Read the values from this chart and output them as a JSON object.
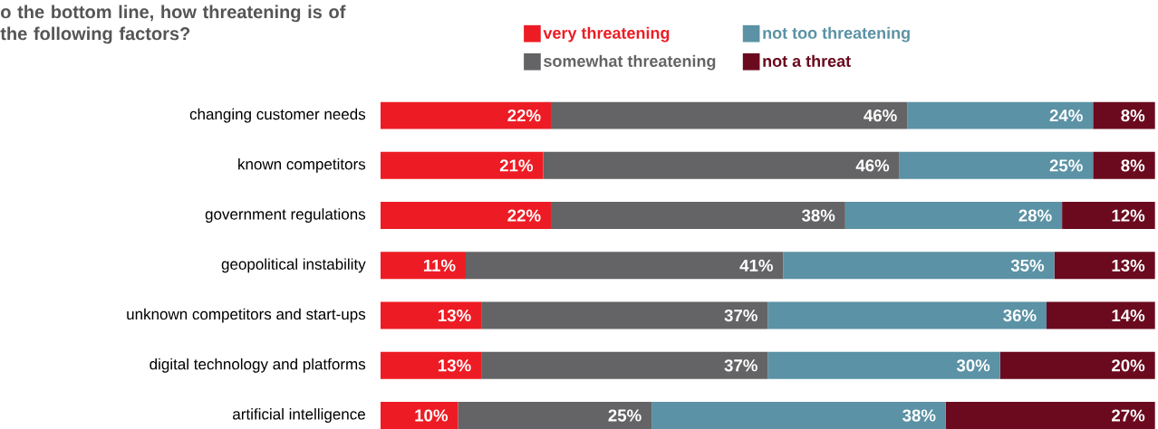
{
  "chart_data": {
    "type": "bar",
    "orientation": "horizontal",
    "stacked": true,
    "legend": "top",
    "title": "o the bottom line, how threatening is of the following factors?",
    "categories": [
      "changing customer needs",
      "known competitors",
      "government regulations",
      "geopolitical instability",
      "unknown competitors and start-ups",
      "digital technology and platforms",
      "artificial intelligence"
    ],
    "series": [
      {
        "name": "very threatening",
        "color": "#ed1c24",
        "values": [
          22,
          21,
          22,
          11,
          13,
          13,
          10
        ],
        "value_labels": [
          "22%",
          "21%",
          "22%",
          "11%",
          "13%",
          "13%",
          "10%"
        ]
      },
      {
        "name": "somewhat threatening",
        "color": "#646466",
        "values": [
          46,
          46,
          38,
          41,
          37,
          37,
          25
        ],
        "value_labels": [
          "46%",
          "46%",
          "38%",
          "41%",
          "37%",
          "37%",
          "25%"
        ]
      },
      {
        "name": "not too threatening",
        "color": "#5b92a5",
        "values": [
          24,
          25,
          28,
          35,
          36,
          30,
          38
        ],
        "value_labels": [
          "24%",
          "25%",
          "28%",
          "35%",
          "36%",
          "30%",
          "38%"
        ]
      },
      {
        "name": "not a threat",
        "color": "#6b0a1e",
        "values": [
          8,
          8,
          12,
          13,
          14,
          20,
          27
        ],
        "value_labels": [
          "8%",
          "8%",
          "12%",
          "13%",
          "14%",
          "20%",
          "27%"
        ]
      }
    ]
  }
}
